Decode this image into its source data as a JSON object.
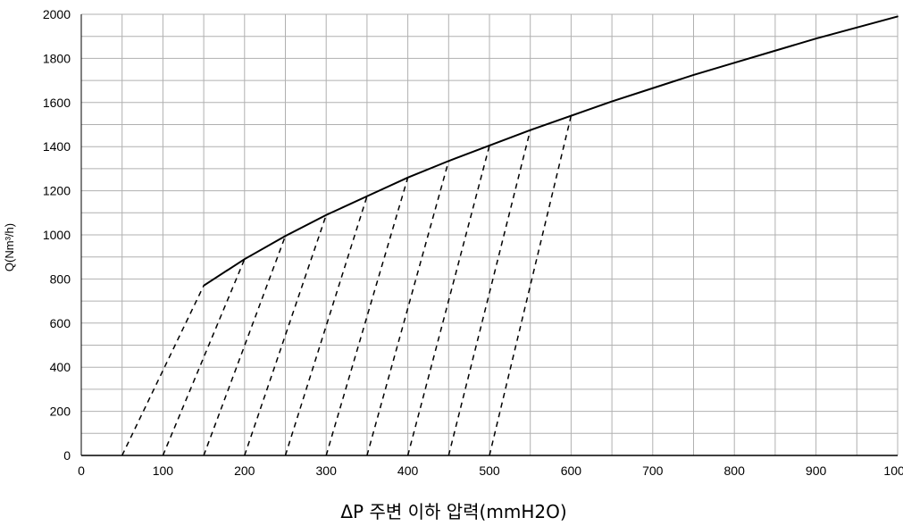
{
  "chart_data": {
    "type": "line",
    "title": "",
    "xlabel": "ΔP 주변 이하 압력(mmH2O)",
    "ylabel": "Q(Nm³/h)",
    "xlim": [
      0,
      1000
    ],
    "ylim": [
      0,
      2000
    ],
    "x_ticks": [
      0,
      100,
      200,
      300,
      400,
      500,
      600,
      700,
      800,
      900,
      1000
    ],
    "y_ticks": [
      0,
      200,
      400,
      600,
      800,
      1000,
      1200,
      1400,
      1600,
      1800,
      2000
    ],
    "x_minor_step": 50,
    "y_minor_step": 100,
    "grid": true,
    "legend": "none",
    "series": [
      {
        "style": "solid",
        "x": [
          150,
          200,
          250,
          300,
          350,
          400,
          450,
          500,
          550,
          600,
          650,
          700,
          750,
          800,
          850,
          900,
          950,
          1000
        ],
        "values": [
          770,
          890,
          995,
          1090,
          1175,
          1260,
          1335,
          1405,
          1475,
          1540,
          1605,
          1665,
          1725,
          1780,
          1835,
          1890,
          1940,
          1990
        ]
      }
    ],
    "dashed_segments": [
      {
        "x": [
          50,
          150
        ],
        "values": [
          0,
          770
        ]
      },
      {
        "x": [
          100,
          200
        ],
        "values": [
          0,
          890
        ]
      },
      {
        "x": [
          150,
          250
        ],
        "values": [
          0,
          995
        ]
      },
      {
        "x": [
          200,
          300
        ],
        "values": [
          0,
          1090
        ]
      },
      {
        "x": [
          250,
          350
        ],
        "values": [
          0,
          1175
        ]
      },
      {
        "x": [
          300,
          400
        ],
        "values": [
          0,
          1260
        ]
      },
      {
        "x": [
          350,
          450
        ],
        "values": [
          0,
          1335
        ]
      },
      {
        "x": [
          400,
          500
        ],
        "values": [
          0,
          1405
        ]
      },
      {
        "x": [
          450,
          550
        ],
        "values": [
          0,
          1475
        ]
      },
      {
        "x": [
          500,
          600
        ],
        "values": [
          0,
          1540
        ]
      }
    ],
    "colors": {
      "grid": "#b0b0b0",
      "axis": "#000000",
      "line": "#000000"
    }
  }
}
